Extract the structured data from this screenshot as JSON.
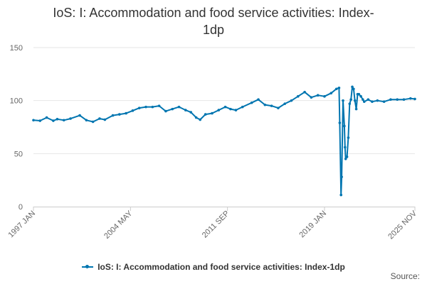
{
  "chart_data": {
    "type": "line",
    "title": "IoS: I: Accommodation and food service activities: Index-1dp",
    "title_lines": [
      "IoS: I: Accommodation and food service activities: Index-",
      "1dp"
    ],
    "xlabel": "",
    "ylabel": "",
    "ylim": [
      0,
      150
    ],
    "yticks": [
      0,
      50,
      100,
      150
    ],
    "x_tick_labels": [
      "1997 JAN",
      "2004 MAY",
      "2011 SEP",
      "2019 JAN",
      "2025 NOV"
    ],
    "x_tick_dates": [
      1997.0,
      2004.333,
      2011.667,
      2019.0,
      2025.833
    ],
    "xlim": [
      1997.0,
      2025.833
    ],
    "grid": true,
    "legend_position": "bottom",
    "series": [
      {
        "name": "IoS: I: Accommodation and food service activities: Index-1dp",
        "color": "#0075b0",
        "x": [
          1997.0,
          1997.5,
          1998.0,
          1998.5,
          1998.8,
          1999.3,
          1999.8,
          2000.5,
          2001.0,
          2001.5,
          2002.0,
          2002.4,
          2003.0,
          2003.5,
          2004.0,
          2004.5,
          2005.0,
          2005.5,
          2006.0,
          2006.5,
          2007.0,
          2007.5,
          2008.0,
          2008.5,
          2008.9,
          2009.3,
          2009.6,
          2010.0,
          2010.5,
          2011.0,
          2011.5,
          2011.9,
          2012.3,
          2012.8,
          2013.5,
          2014.0,
          2014.5,
          2015.0,
          2015.5,
          2016.0,
          2016.5,
          2017.0,
          2017.5,
          2018.0,
          2018.5,
          2019.0,
          2019.5,
          2019.9,
          2020.1,
          2020.15,
          2020.25,
          2020.3,
          2020.4,
          2020.5,
          2020.55,
          2020.6,
          2020.7,
          2020.8,
          2020.9,
          2021.0,
          2021.1,
          2021.2,
          2021.3,
          2021.4,
          2021.5,
          2021.6,
          2021.75,
          2021.9,
          2022.0,
          2022.3,
          2022.6,
          2023.0,
          2023.5,
          2024.0,
          2024.5,
          2025.0,
          2025.5,
          2025.833
        ],
        "values": [
          81.5,
          81.0,
          84.0,
          81.0,
          82.5,
          81.5,
          83.0,
          86.0,
          81.5,
          80.0,
          83.0,
          82.0,
          86.0,
          87.0,
          88.0,
          90.5,
          93.0,
          94.0,
          94.0,
          95.0,
          90.0,
          92.0,
          94.0,
          91.0,
          89.0,
          84.0,
          82.0,
          87.0,
          88.0,
          91.0,
          94.0,
          92.0,
          91.0,
          94.0,
          98.0,
          101.0,
          96.0,
          95.0,
          93.0,
          97.0,
          100.0,
          104.0,
          108.0,
          103.0,
          105.0,
          104.0,
          107.0,
          111.0,
          112.0,
          79.0,
          11.0,
          28.0,
          100.0,
          76.0,
          56.0,
          45.0,
          47.0,
          65.0,
          97.0,
          101.0,
          113.0,
          111.0,
          100.0,
          92.0,
          106.0,
          106.0,
          104.0,
          101.0,
          99.0,
          101.0,
          99.0,
          100.0,
          99.0,
          101.0,
          101.0,
          101.0,
          102.0,
          101.5
        ]
      }
    ]
  },
  "footer": {
    "source_label": "Source:"
  }
}
